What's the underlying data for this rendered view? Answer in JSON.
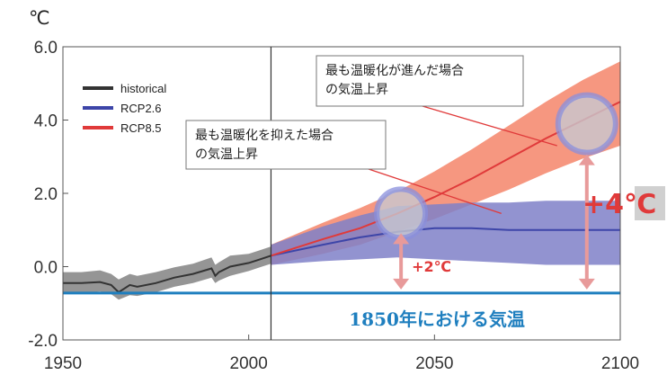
{
  "chart_data": {
    "type": "line",
    "unit": "℃",
    "xlim": [
      1950,
      2100
    ],
    "ylim": [
      -2.0,
      6.0
    ],
    "x_ticks": [
      "1950",
      "2000",
      "2050",
      "2100"
    ],
    "y_ticks": [
      "6.0",
      "4.0",
      "2.0",
      "0.0",
      "-2.0"
    ],
    "y_tick_values": [
      6.0,
      4.0,
      2.0,
      0.0,
      -2.0
    ],
    "x_tick_values": [
      1950,
      2000,
      2050,
      2100
    ],
    "divider_year": 2006,
    "legend": [
      {
        "name": "historical",
        "color": "#333333"
      },
      {
        "name": "RCP2.6",
        "color": "#3d45a8"
      },
      {
        "name": "RCP8.5",
        "color": "#e03a3a"
      }
    ],
    "series": [
      {
        "name": "historical",
        "color": "#333333",
        "band_color": "#8f8f8f",
        "x": [
          1950,
          1955,
          1960,
          1963,
          1965,
          1968,
          1970,
          1975,
          1980,
          1985,
          1990,
          1991,
          1992,
          1995,
          2000,
          2003,
          2006
        ],
        "y": [
          -0.45,
          -0.45,
          -0.42,
          -0.5,
          -0.7,
          -0.5,
          -0.55,
          -0.45,
          -0.3,
          -0.2,
          -0.05,
          -0.25,
          -0.15,
          0.0,
          0.1,
          0.2,
          0.3
        ],
        "low": [
          -0.72,
          -0.72,
          -0.68,
          -0.75,
          -0.9,
          -0.78,
          -0.8,
          -0.7,
          -0.55,
          -0.45,
          -0.3,
          -0.45,
          -0.38,
          -0.25,
          -0.12,
          -0.02,
          0.08
        ],
        "high": [
          -0.15,
          -0.15,
          -0.1,
          -0.2,
          -0.35,
          -0.2,
          -0.25,
          -0.15,
          -0.02,
          0.08,
          0.25,
          0.05,
          0.12,
          0.3,
          0.35,
          0.45,
          0.55
        ]
      },
      {
        "name": "RCP2.6",
        "color": "#3d45a8",
        "band_color": "#7f80c8",
        "x": [
          2006,
          2020,
          2030,
          2040,
          2050,
          2060,
          2070,
          2080,
          2090,
          2100
        ],
        "y": [
          0.3,
          0.6,
          0.8,
          0.95,
          1.05,
          1.05,
          1.0,
          1.0,
          1.0,
          1.0
        ],
        "low": [
          0.05,
          0.15,
          0.2,
          0.25,
          0.2,
          0.15,
          0.1,
          0.05,
          0.05,
          0.05
        ],
        "high": [
          0.6,
          1.1,
          1.4,
          1.65,
          1.7,
          1.75,
          1.75,
          1.8,
          1.8,
          1.8
        ]
      },
      {
        "name": "RCP8.5",
        "color": "#e03a3a",
        "band_color": "#f5856a",
        "x": [
          2006,
          2020,
          2030,
          2040,
          2050,
          2060,
          2070,
          2080,
          2090,
          2100
        ],
        "y": [
          0.3,
          0.75,
          1.05,
          1.45,
          1.9,
          2.4,
          2.95,
          3.5,
          4.0,
          4.5
        ],
        "low": [
          0.05,
          0.35,
          0.6,
          0.95,
          1.3,
          1.7,
          2.1,
          2.55,
          2.95,
          3.3
        ],
        "high": [
          0.6,
          1.2,
          1.6,
          2.05,
          2.6,
          3.2,
          3.85,
          4.5,
          5.1,
          5.6
        ]
      }
    ],
    "baseline": {
      "y": -0.72,
      "label": "1850年における気温",
      "color": "#1f7fbf"
    },
    "annotations": [
      {
        "text_lines": [
          "最も温暖化が進んだ場合",
          "の気温上昇"
        ],
        "pointer_year": 2083,
        "pointer_value": 3.3
      },
      {
        "text_lines": [
          "最も温暖化を抑えた場合",
          "の気温上昇"
        ],
        "pointer_year": 2068,
        "pointer_value": 1.45
      }
    ],
    "highlights": [
      {
        "year": 2041,
        "value": 1.45,
        "label": "+2℃",
        "label_color": "#e03a3a"
      },
      {
        "year": 2091,
        "value": 3.9,
        "label": "+4℃",
        "label_color": "#e03a3a"
      }
    ]
  }
}
